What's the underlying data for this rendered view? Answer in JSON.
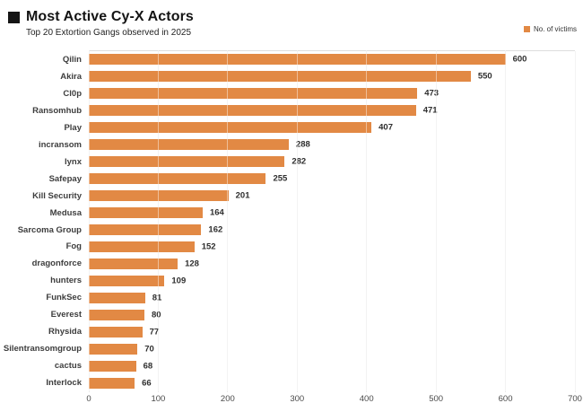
{
  "header": {
    "title": "Most Active Cy-X Actors",
    "subtitle": "Top 20 Extortion Gangs observed in 2025",
    "legend_label": "No. of victims"
  },
  "colors": {
    "bar": "#E28944",
    "title_marker": "#151515"
  },
  "chart_data": {
    "type": "bar",
    "orientation": "horizontal",
    "title": "Most Active Cy-X Actors",
    "subtitle": "Top 20 Extortion Gangs observed in 2025",
    "series_label": "No. of victims",
    "categories": [
      "Qilin",
      "Akira",
      "Cl0p",
      "Ransomhub",
      "Play",
      "incransom",
      "lynx",
      "Safepay",
      "Kill Security",
      "Medusa",
      "Sarcoma Group",
      "Fog",
      "dragonforce",
      "hunters",
      "FunkSec",
      "Everest",
      "Rhysida",
      "Silentransomgroup",
      "cactus",
      "Interlock"
    ],
    "values": [
      600,
      550,
      473,
      471,
      407,
      288,
      282,
      255,
      201,
      164,
      162,
      152,
      128,
      109,
      81,
      80,
      77,
      70,
      68,
      66
    ],
    "xlim": [
      0,
      700
    ],
    "x_ticks": [
      0,
      100,
      200,
      300,
      400,
      500,
      600,
      700
    ],
    "grid": true,
    "legend_position": "top-right",
    "bar_color": "#E28944",
    "value_labels": true
  }
}
